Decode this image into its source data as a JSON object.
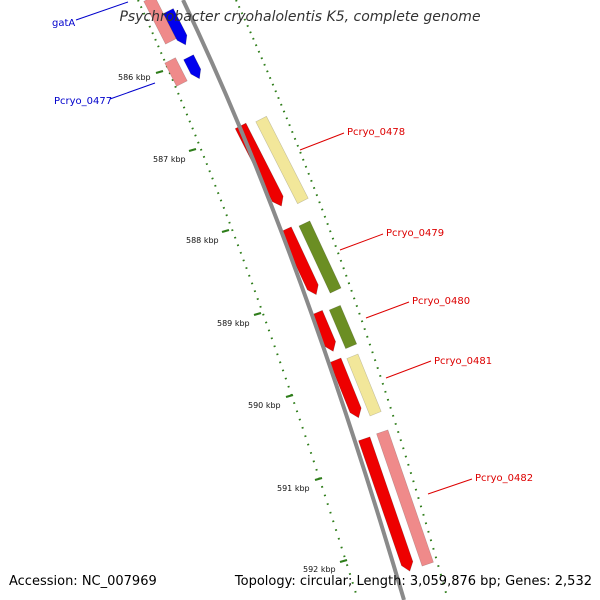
{
  "title": "Psychrobacter cryohalolentis K5, complete genome",
  "footer": {
    "accession": "Accession: NC_007969",
    "summary": "Topology: circular; Length: 3,059,876 bp; Genes: 2,532"
  },
  "scale_labels": [
    "586 kbp",
    "587 kbp",
    "588 kbp",
    "589 kbp",
    "590 kbp",
    "591 kbp",
    "592 kbp"
  ],
  "genes": [
    {
      "name": "gatA",
      "color": "#0000cc"
    },
    {
      "name": "Pcryo_0477",
      "color": "#0000cc"
    },
    {
      "name": "Pcryo_0478",
      "color": "#dd0000"
    },
    {
      "name": "Pcryo_0479",
      "color": "#dd0000"
    },
    {
      "name": "Pcryo_0480",
      "color": "#dd0000"
    },
    {
      "name": "Pcryo_0481",
      "color": "#dd0000"
    },
    {
      "name": "Pcryo_0482",
      "color": "#dd0000"
    }
  ],
  "colors": {
    "backbone": "#8a8a8a",
    "tick": "#2e7d1a",
    "cds_red": "#ee0000",
    "cds_blue": "#0000ee",
    "cog_yellow": "#f2e79a",
    "cog_olive": "#6b8e23",
    "cog_pink": "#ef8a8a"
  }
}
